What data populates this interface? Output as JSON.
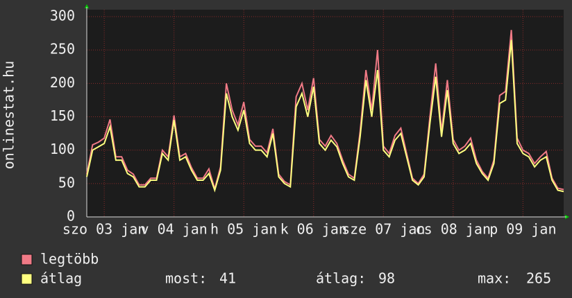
{
  "chart_data": {
    "type": "line",
    "ylabel": "onlinestat.hu",
    "x": [
      0,
      2,
      4,
      6,
      8,
      10,
      12,
      14,
      16,
      18,
      20,
      22,
      24,
      26,
      28,
      30,
      32,
      34,
      36,
      38,
      40,
      42,
      44,
      46,
      48,
      50,
      52,
      54,
      56,
      58,
      60,
      62,
      64,
      66,
      68,
      70,
      72,
      74,
      76,
      78,
      80,
      82,
      84,
      86,
      88,
      90,
      92,
      94,
      96,
      98,
      100,
      102,
      104,
      106,
      108,
      110,
      112,
      114,
      116,
      118,
      120,
      122,
      124,
      126,
      128,
      130,
      132,
      134,
      136,
      138,
      140,
      142,
      144,
      146,
      148,
      150,
      152,
      154,
      156,
      158,
      160,
      162,
      164
    ],
    "xlim": [
      0,
      164
    ],
    "xticks": [
      {
        "value": 6,
        "label": "szo 03 jan"
      },
      {
        "value": 30,
        "label": "v 04 jan"
      },
      {
        "value": 54,
        "label": "h 05 jan"
      },
      {
        "value": 78,
        "label": "k 06 jan"
      },
      {
        "value": 102,
        "label": "sze 07 jan"
      },
      {
        "value": 126,
        "label": "cs 08 jan"
      },
      {
        "value": 150,
        "label": "p 09 jan"
      }
    ],
    "ylim": [
      0,
      300
    ],
    "yticks": [
      0,
      50,
      100,
      150,
      200,
      250,
      300
    ],
    "grid": true,
    "series": [
      {
        "name": "legtöbb",
        "color": "#f07a86",
        "values": [
          64,
          108,
          112,
          118,
          146,
          90,
          90,
          70,
          64,
          48,
          48,
          58,
          58,
          100,
          90,
          152,
          90,
          95,
          74,
          58,
          58,
          72,
          42,
          75,
          200,
          160,
          138,
          172,
          116,
          106,
          106,
          96,
          132,
          64,
          53,
          48,
          180,
          200,
          160,
          208,
          116,
          106,
          122,
          110,
          85,
          64,
          58,
          128,
          220,
          160,
          250,
          106,
          95,
          122,
          133,
          95,
          58,
          50,
          64,
          150,
          230,
          128,
          205,
          116,
          100,
          106,
          118,
          85,
          68,
          58,
          85,
          182,
          188,
          280,
          118,
          100,
          95,
          80,
          90,
          98,
          58,
          43,
          41
        ]
      },
      {
        "name": "átlag",
        "color": "#ffff80",
        "values": [
          60,
          100,
          105,
          110,
          135,
          85,
          85,
          65,
          60,
          45,
          45,
          55,
          55,
          95,
          85,
          145,
          85,
          90,
          70,
          55,
          55,
          65,
          40,
          70,
          185,
          150,
          130,
          160,
          110,
          100,
          100,
          90,
          125,
          60,
          50,
          45,
          165,
          185,
          150,
          195,
          110,
          100,
          115,
          105,
          80,
          60,
          55,
          120,
          205,
          150,
          220,
          100,
          90,
          115,
          125,
          90,
          55,
          48,
          60,
          140,
          210,
          120,
          190,
          110,
          95,
          100,
          110,
          80,
          65,
          55,
          80,
          170,
          175,
          265,
          110,
          95,
          90,
          75,
          85,
          90,
          55,
          40,
          38
        ]
      }
    ],
    "stats": [
      {
        "label": "most:",
        "value": 41
      },
      {
        "label": "átlag:",
        "value": 98
      },
      {
        "label": "max:",
        "value": 265
      }
    ]
  }
}
